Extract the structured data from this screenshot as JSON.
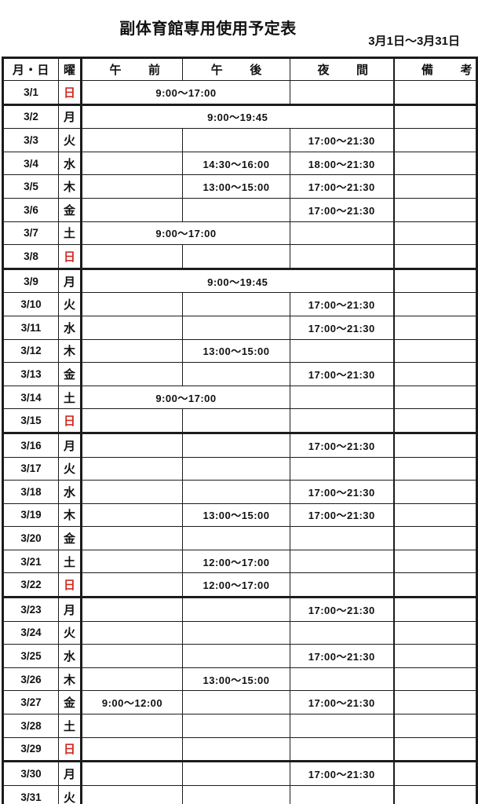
{
  "title": "副体育館専用使用予定表",
  "date_range": "3月1日〜3月31日",
  "colors": {
    "sunday_red": "#d02a20",
    "border": "#1c1c1c",
    "text": "#111111"
  },
  "table": {
    "headers": {
      "date": "月・日",
      "weekday": "曜",
      "morning": "午前",
      "afternoon": "午後",
      "evening": "夜間",
      "remarks": "備考"
    },
    "rows": [
      {
        "date": "3/1",
        "weekday": "日",
        "sunday": true,
        "merge": "morning_afternoon",
        "time": "9:00〜17:00",
        "evening": "",
        "remarks": "",
        "week_end": true
      },
      {
        "date": "3/2",
        "weekday": "月",
        "sunday": false,
        "merge": "all_day",
        "time": "9:00〜19:45",
        "remarks": "",
        "week_end": false
      },
      {
        "date": "3/3",
        "weekday": "火",
        "sunday": false,
        "merge": "none",
        "morning": "",
        "afternoon": "",
        "evening": "17:00〜21:30",
        "remarks": "",
        "week_end": false
      },
      {
        "date": "3/4",
        "weekday": "水",
        "sunday": false,
        "merge": "none",
        "morning": "",
        "afternoon": "14:30〜16:00",
        "evening": "18:00〜21:30",
        "remarks": "",
        "week_end": false
      },
      {
        "date": "3/5",
        "weekday": "木",
        "sunday": false,
        "merge": "none",
        "morning": "",
        "afternoon": "13:00〜15:00",
        "evening": "17:00〜21:30",
        "remarks": "",
        "week_end": false
      },
      {
        "date": "3/6",
        "weekday": "金",
        "sunday": false,
        "merge": "none",
        "morning": "",
        "afternoon": "",
        "evening": "17:00〜21:30",
        "remarks": "",
        "week_end": false
      },
      {
        "date": "3/7",
        "weekday": "土",
        "sunday": false,
        "merge": "morning_afternoon",
        "time": "9:00〜17:00",
        "evening": "",
        "remarks": "",
        "week_end": false
      },
      {
        "date": "3/8",
        "weekday": "日",
        "sunday": true,
        "merge": "none",
        "morning": "",
        "afternoon": "",
        "evening": "",
        "remarks": "",
        "week_end": true
      },
      {
        "date": "3/9",
        "weekday": "月",
        "sunday": false,
        "merge": "all_day",
        "time": "9:00〜19:45",
        "remarks": "",
        "week_end": false
      },
      {
        "date": "3/10",
        "weekday": "火",
        "sunday": false,
        "merge": "none",
        "morning": "",
        "afternoon": "",
        "evening": "17:00〜21:30",
        "remarks": "",
        "week_end": false
      },
      {
        "date": "3/11",
        "weekday": "水",
        "sunday": false,
        "merge": "none",
        "morning": "",
        "afternoon": "",
        "evening": "17:00〜21:30",
        "remarks": "",
        "week_end": false
      },
      {
        "date": "3/12",
        "weekday": "木",
        "sunday": false,
        "merge": "none",
        "morning": "",
        "afternoon": "13:00〜15:00",
        "evening": "",
        "remarks": "",
        "week_end": false
      },
      {
        "date": "3/13",
        "weekday": "金",
        "sunday": false,
        "merge": "none",
        "morning": "",
        "afternoon": "",
        "evening": "17:00〜21:30",
        "remarks": "",
        "week_end": false
      },
      {
        "date": "3/14",
        "weekday": "土",
        "sunday": false,
        "merge": "morning_afternoon",
        "time": "9:00〜17:00",
        "evening": "",
        "remarks": "",
        "week_end": false
      },
      {
        "date": "3/15",
        "weekday": "日",
        "sunday": true,
        "merge": "none",
        "morning": "",
        "afternoon": "",
        "evening": "",
        "remarks": "",
        "week_end": true
      },
      {
        "date": "3/16",
        "weekday": "月",
        "sunday": false,
        "merge": "none",
        "morning": "",
        "afternoon": "",
        "evening": "17:00〜21:30",
        "remarks": "",
        "week_end": false
      },
      {
        "date": "3/17",
        "weekday": "火",
        "sunday": false,
        "merge": "none",
        "morning": "",
        "afternoon": "",
        "evening": "",
        "remarks": "",
        "week_end": false
      },
      {
        "date": "3/18",
        "weekday": "水",
        "sunday": false,
        "merge": "none",
        "morning": "",
        "afternoon": "",
        "evening": "17:00〜21:30",
        "remarks": "",
        "week_end": false
      },
      {
        "date": "3/19",
        "weekday": "木",
        "sunday": false,
        "merge": "none",
        "morning": "",
        "afternoon": "13:00〜15:00",
        "evening": "17:00〜21:30",
        "remarks": "",
        "week_end": false
      },
      {
        "date": "3/20",
        "weekday": "金",
        "sunday": false,
        "merge": "none",
        "morning": "",
        "afternoon": "",
        "evening": "",
        "remarks": "",
        "week_end": false
      },
      {
        "date": "3/21",
        "weekday": "土",
        "sunday": false,
        "merge": "none",
        "morning": "",
        "afternoon": "12:00〜17:00",
        "evening": "",
        "remarks": "",
        "week_end": false
      },
      {
        "date": "3/22",
        "weekday": "日",
        "sunday": true,
        "merge": "none",
        "morning": "",
        "afternoon": "12:00〜17:00",
        "evening": "",
        "remarks": "",
        "week_end": true
      },
      {
        "date": "3/23",
        "weekday": "月",
        "sunday": false,
        "merge": "none",
        "morning": "",
        "afternoon": "",
        "evening": "17:00〜21:30",
        "remarks": "",
        "week_end": false
      },
      {
        "date": "3/24",
        "weekday": "火",
        "sunday": false,
        "merge": "none",
        "morning": "",
        "afternoon": "",
        "evening": "",
        "remarks": "",
        "week_end": false
      },
      {
        "date": "3/25",
        "weekday": "水",
        "sunday": false,
        "merge": "none",
        "morning": "",
        "afternoon": "",
        "evening": "17:00〜21:30",
        "remarks": "",
        "week_end": false
      },
      {
        "date": "3/26",
        "weekday": "木",
        "sunday": false,
        "merge": "none",
        "morning": "",
        "afternoon": "13:00〜15:00",
        "evening": "",
        "remarks": "",
        "week_end": false
      },
      {
        "date": "3/27",
        "weekday": "金",
        "sunday": false,
        "merge": "none",
        "morning": "9:00〜12:00",
        "afternoon": "",
        "evening": "17:00〜21:30",
        "remarks": "",
        "week_end": false
      },
      {
        "date": "3/28",
        "weekday": "土",
        "sunday": false,
        "merge": "none",
        "morning": "",
        "afternoon": "",
        "evening": "",
        "remarks": "",
        "week_end": false
      },
      {
        "date": "3/29",
        "weekday": "日",
        "sunday": true,
        "merge": "none",
        "morning": "",
        "afternoon": "",
        "evening": "",
        "remarks": "",
        "week_end": true
      },
      {
        "date": "3/30",
        "weekday": "月",
        "sunday": false,
        "merge": "none",
        "morning": "",
        "afternoon": "",
        "evening": "17:00〜21:30",
        "remarks": "",
        "week_end": false
      },
      {
        "date": "3/31",
        "weekday": "火",
        "sunday": false,
        "merge": "none",
        "morning": "",
        "afternoon": "",
        "evening": "",
        "remarks": "",
        "week_end": false
      }
    ]
  }
}
